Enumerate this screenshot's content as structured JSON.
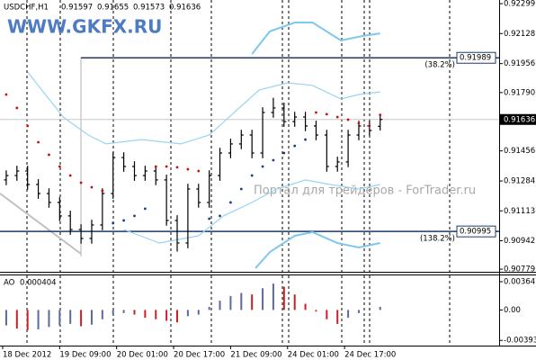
{
  "chart_data": [
    {
      "type": "ohlc",
      "symbol": "USDCHF,H1",
      "watermark": "WWW.GKFX.RU",
      "annotation": "Портал для трейдеров - ForTrader.ru",
      "color": "#000000",
      "x": [
        1,
        4,
        7,
        10,
        13,
        16,
        19,
        22,
        25,
        28,
        31,
        34,
        37,
        40,
        43,
        46,
        49,
        52,
        55,
        58,
        61,
        64,
        67,
        70,
        73,
        76,
        79,
        82,
        85,
        88,
        91,
        94,
        97,
        100,
        103,
        106
      ],
      "open": [
        0.9129,
        0.91315,
        0.91341,
        0.91264,
        0.91212,
        0.91161,
        0.91084,
        0.91006,
        0.90955,
        0.91032,
        0.91212,
        0.91418,
        0.91367,
        0.91315,
        0.91341,
        0.9129,
        0.91058,
        0.90929,
        0.91238,
        0.91161,
        0.91315,
        0.91444,
        0.91496,
        0.91547,
        0.91444,
        0.91676,
        0.91702,
        0.91624,
        0.9165,
        0.91599,
        0.91547,
        0.91367,
        0.91393,
        0.91547,
        0.91599,
        0.91597
      ],
      "high": [
        0.91345,
        0.91371,
        0.91371,
        0.91294,
        0.91242,
        0.91191,
        0.91114,
        0.91036,
        0.91062,
        0.91242,
        0.91448,
        0.91448,
        0.91397,
        0.91371,
        0.91371,
        0.9132,
        0.91088,
        0.91268,
        0.91268,
        0.91345,
        0.91474,
        0.91526,
        0.91577,
        0.91577,
        0.91706,
        0.9176,
        0.91732,
        0.9168,
        0.9168,
        0.91629,
        0.91577,
        0.91423,
        0.91577,
        0.91629,
        0.91629,
        0.91655
      ],
      "low": [
        0.9126,
        0.91285,
        0.91234,
        0.91182,
        0.91131,
        0.91054,
        0.90976,
        0.90925,
        0.90925,
        0.91002,
        0.91182,
        0.91337,
        0.91285,
        0.91285,
        0.9126,
        0.91028,
        0.9088,
        0.90899,
        0.91131,
        0.91131,
        0.91285,
        0.91414,
        0.91466,
        0.91414,
        0.91414,
        0.91646,
        0.91594,
        0.91594,
        0.91569,
        0.91517,
        0.91337,
        0.91337,
        0.91363,
        0.91517,
        0.91543,
        0.91573
      ],
      "close": [
        0.91315,
        0.91341,
        0.91264,
        0.91212,
        0.91161,
        0.91084,
        0.91006,
        0.90955,
        0.91032,
        0.91212,
        0.91418,
        0.91367,
        0.91315,
        0.91341,
        0.9129,
        0.91058,
        0.90929,
        0.91238,
        0.91161,
        0.91315,
        0.91444,
        0.91496,
        0.91547,
        0.91444,
        0.91676,
        0.91702,
        0.91624,
        0.9165,
        0.91599,
        0.91547,
        0.91367,
        0.91393,
        0.91547,
        0.91599,
        0.91573,
        0.91636
      ],
      "sar": [
        0.91779,
        0.91702,
        0.91599,
        0.91506,
        0.91434,
        0.91367,
        0.91315,
        0.91274,
        0.91248,
        0.91228,
        0.91042,
        0.91058,
        0.91084,
        0.91125,
        0.91367,
        0.91367,
        0.91362,
        0.91351,
        0.91341,
        0.91068,
        0.91084,
        0.91161,
        0.91238,
        0.91315,
        0.91367,
        0.91403,
        0.91444,
        0.91485,
        0.91521,
        0.91676,
        0.91666,
        0.9165,
        0.91635,
        0.91614,
        0.91599,
        0.91662
      ],
      "sar_colors": {
        "above": "#cc1010",
        "below": "#1c3c8c"
      },
      "bands": [
        {
          "color": "#7cc8ee",
          "x": [
            70,
            75,
            82,
            87,
            95,
            101,
            106
          ],
          "values": [
            0.92011,
            0.9214,
            0.92191,
            0.92191,
            0.92088,
            0.92114,
            0.92129
          ]
        },
        {
          "color": "#9ad4f0",
          "x": [
            7,
            17,
            24,
            29,
            39,
            50,
            58,
            65,
            72,
            80,
            87,
            95,
            100,
            106
          ],
          "values": [
            0.91908,
            0.9165,
            0.91547,
            0.91496,
            0.91521,
            0.91496,
            0.91547,
            0.91676,
            0.91805,
            0.91846,
            0.91831,
            0.91753,
            0.91779,
            0.91794
          ]
        },
        {
          "color": "#9ad4f0",
          "x": [
            34,
            44,
            55,
            62,
            70,
            77,
            85,
            92,
            100,
            106
          ],
          "values": [
            0.91006,
            0.90929,
            0.9097,
            0.91084,
            0.91161,
            0.91238,
            0.9129,
            0.91264,
            0.91238,
            0.91264
          ]
        },
        {
          "color": "#7cc8ee",
          "x": [
            71,
            75,
            82,
            87,
            94,
            100,
            106
          ],
          "values": [
            0.90785,
            0.90877,
            0.9097,
            0.90991,
            0.90929,
            0.90903,
            0.90929
          ]
        }
      ],
      "levels": [
        {
          "value": 0.91989,
          "label": "(38.2%)"
        },
        {
          "value": 0.90995,
          "label": "(138.2%)"
        }
      ],
      "xlim": [
        -0.75,
        139.4
      ],
      "xticks": [
        {
          "value": 0,
          "label": "18 Dec 2012"
        },
        {
          "value": 16,
          "label": "19 Dec 09:00"
        },
        {
          "value": 32,
          "label": "20 Dec 01:00"
        },
        {
          "value": 48,
          "label": "20 Dec 17:00"
        },
        {
          "value": 64,
          "label": "21 Dec 09:00"
        },
        {
          "value": 80,
          "label": "24 Dec 01:00"
        },
        {
          "value": 96,
          "label": "24 Dec 17:00"
        }
      ],
      "ylim": [
        0.90764,
        0.9232
      ],
      "yticks": [
        0.92299,
        0.92128,
        0.91956,
        {
          "value": 0.9179,
          "label": "0.91790"
        },
        0.91456,
        0.91284,
        0.91113,
        0.90942,
        0.90779
      ]
    },
    {
      "type": "bar",
      "name": "AO",
      "up_color": "#5a6aa0",
      "down_color": "#cc2020",
      "x": [
        1,
        4,
        7,
        10,
        13,
        16,
        19,
        22,
        25,
        28,
        31,
        34,
        37,
        40,
        43,
        46,
        49,
        52,
        55,
        58,
        61,
        64,
        67,
        70,
        73,
        76,
        79,
        82,
        85,
        88,
        91,
        94,
        97,
        100,
        103,
        106
      ],
      "values": [
        -0.002,
        -0.0024,
        -0.0026,
        -0.0025,
        -0.0022,
        -0.002,
        -0.0018,
        -0.0021,
        -0.0019,
        -0.0012,
        -0.0006,
        -0.0004,
        -0.0006,
        -0.001,
        -0.0012,
        -0.0014,
        -0.0016,
        -0.0008,
        -0.0006,
        0.0004,
        0.0012,
        0.0018,
        0.0022,
        0.002,
        0.0028,
        0.0034,
        0.003,
        0.002,
        0.0008,
        -0.0002,
        -0.0012,
        -0.0018,
        -0.001,
        -0.0004,
        0.0002,
        0.000404
      ],
      "xlim": [
        -0.75,
        139.4
      ],
      "ylim": [
        -0.0046,
        0.00446
      ],
      "yticks": [
        0.003647,
        {
          "value": 0,
          "label": "0.00"
        },
        -0.00393
      ]
    }
  ]
}
